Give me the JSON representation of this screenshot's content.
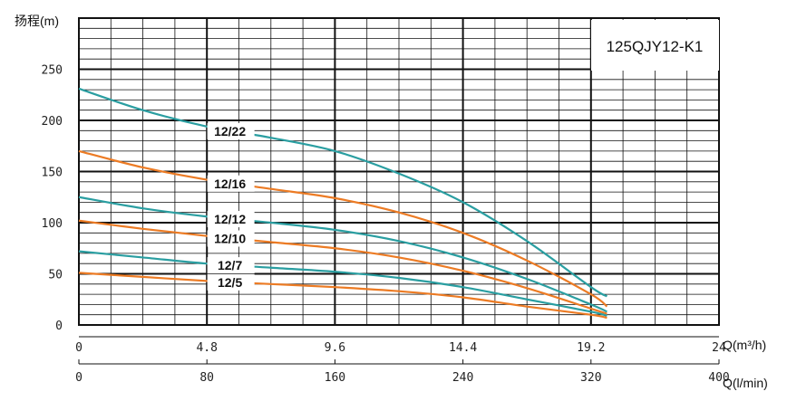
{
  "chart_data": {
    "type": "line",
    "title": "125QJY12-K1",
    "ylabel": "扬程(m)",
    "xlabel_top": "Q(m³/h)",
    "xlabel_bottom": "Q(l/min)",
    "xlim": [
      0,
      24
    ],
    "ylim": [
      0,
      300
    ],
    "x_ticks": [
      "0",
      "4.8",
      "9.6",
      "14.4",
      "19.2",
      "24"
    ],
    "x_ticks_bottom": [
      "0",
      "80",
      "160",
      "240",
      "320",
      "400"
    ],
    "y_ticks": [
      "0",
      "50",
      "100",
      "150",
      "200",
      "250"
    ],
    "grid": true,
    "colors": {
      "teal": "#2a9ea1",
      "orange": "#ec7b24"
    },
    "series": [
      {
        "name": "12/22",
        "color": "#2a9ea1",
        "label_at": 5.8,
        "points": [
          [
            0,
            231
          ],
          [
            2.4,
            210
          ],
          [
            4.8,
            194
          ],
          [
            7.2,
            183
          ],
          [
            9.6,
            170
          ],
          [
            12,
            148
          ],
          [
            14.4,
            120
          ],
          [
            16.8,
            82
          ],
          [
            19.2,
            37
          ],
          [
            19.8,
            28
          ]
        ]
      },
      {
        "name": "12/16",
        "color": "#ec7b24",
        "label_at": 5.8,
        "points": [
          [
            0,
            170
          ],
          [
            2.4,
            154
          ],
          [
            4.8,
            142
          ],
          [
            7.2,
            133
          ],
          [
            9.6,
            124
          ],
          [
            12,
            110
          ],
          [
            14.4,
            90
          ],
          [
            16.8,
            63
          ],
          [
            19.2,
            30
          ],
          [
            19.8,
            18
          ]
        ]
      },
      {
        "name": "12/12",
        "color": "#2a9ea1",
        "label_at": 5.8,
        "points": [
          [
            0,
            125
          ],
          [
            2.4,
            114
          ],
          [
            4.8,
            106
          ],
          [
            7.2,
            100
          ],
          [
            9.6,
            93
          ],
          [
            12,
            82
          ],
          [
            14.4,
            66
          ],
          [
            16.8,
            45
          ],
          [
            19.2,
            20
          ],
          [
            19.8,
            13
          ]
        ]
      },
      {
        "name": "12/10",
        "color": "#ec7b24",
        "label_at": 5.8,
        "points": [
          [
            0,
            102
          ],
          [
            2.4,
            94
          ],
          [
            4.8,
            87
          ],
          [
            7.2,
            81
          ],
          [
            9.6,
            75
          ],
          [
            12,
            66
          ],
          [
            14.4,
            53
          ],
          [
            16.8,
            36
          ],
          [
            19.2,
            16
          ],
          [
            19.8,
            11
          ]
        ]
      },
      {
        "name": "12/7",
        "color": "#2a9ea1",
        "label_at": 5.8,
        "points": [
          [
            0,
            72
          ],
          [
            2.4,
            66
          ],
          [
            4.8,
            60
          ],
          [
            7.2,
            56
          ],
          [
            9.6,
            52
          ],
          [
            12,
            46
          ],
          [
            14.4,
            37
          ],
          [
            16.8,
            25
          ],
          [
            19.2,
            13
          ],
          [
            19.8,
            9
          ]
        ]
      },
      {
        "name": "12/5",
        "color": "#ec7b24",
        "label_at": 5.8,
        "points": [
          [
            0,
            51
          ],
          [
            2.4,
            47
          ],
          [
            4.8,
            43
          ],
          [
            7.2,
            40
          ],
          [
            9.6,
            37
          ],
          [
            12,
            33
          ],
          [
            14.4,
            27
          ],
          [
            16.8,
            18
          ],
          [
            19.2,
            10
          ],
          [
            19.8,
            7
          ]
        ]
      }
    ]
  }
}
